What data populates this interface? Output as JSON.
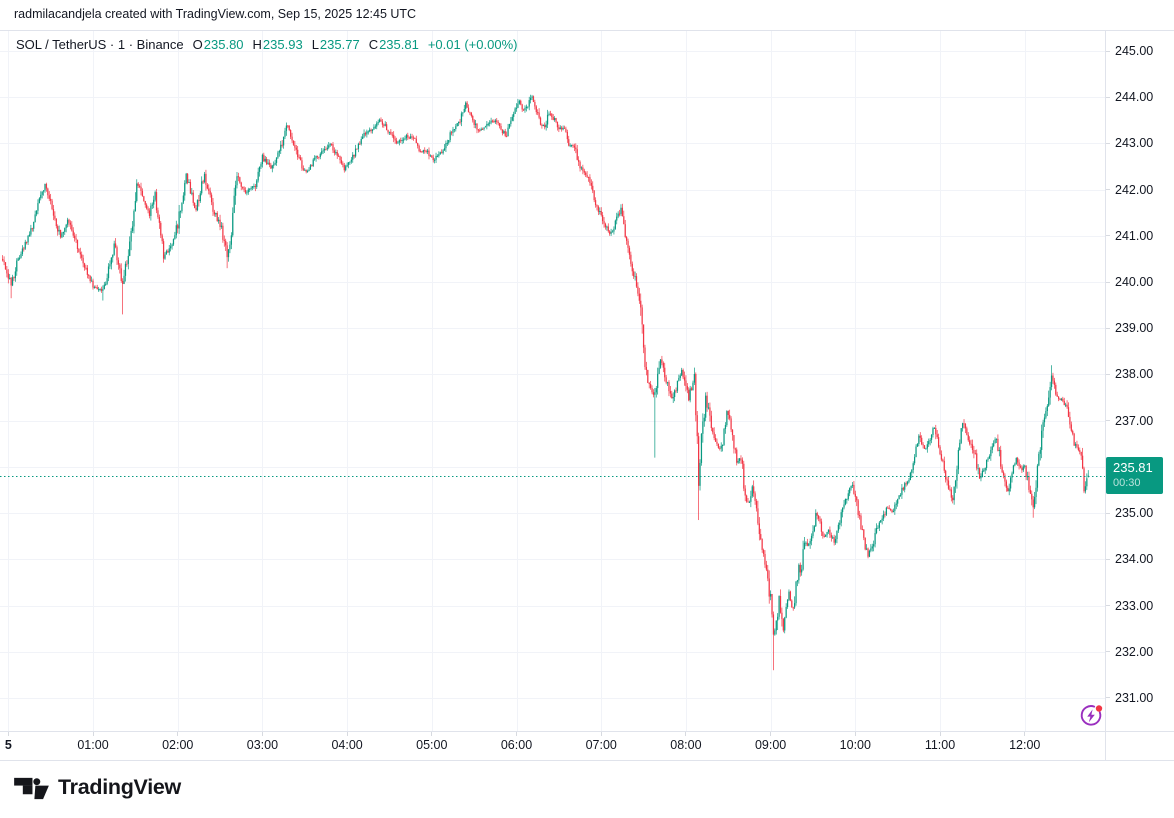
{
  "attribution": "radmilacandjela created with TradingView.com, Sep 15, 2025 12:45 UTC",
  "header": {
    "title": "SOL / TetherUS · 1 · Binance",
    "o_label": "O",
    "o": "235.80",
    "h_label": "H",
    "h": "235.93",
    "l_label": "L",
    "l": "235.77",
    "c_label": "C",
    "c": "235.81",
    "change": "+0.01 (+0.00%)"
  },
  "last_price_badge": {
    "price": "235.81",
    "countdown": "00:30",
    "color": "#089981"
  },
  "footer": {
    "brand": "TradingView"
  },
  "corner_icon": {
    "name": "flash-circle-icon",
    "circle_color": "#9a2fbf",
    "dot_color": "#f23645"
  },
  "chart_data": {
    "type": "candlestick",
    "title": "SOL/TetherUS 1-minute candles, Sep 15 2025 00:00-12:45 UTC",
    "up_color": "#089981",
    "down_color": "#F23645",
    "grid_color": "#f1f3f8",
    "text_color": "#131722",
    "last_price": 235.81,
    "last_bar": {
      "o": 235.8,
      "h": 235.93,
      "l": 235.77,
      "c": 235.81
    },
    "price_axis": {
      "min": 231,
      "max": 245,
      "step": 1,
      "labels": [
        "245.00",
        "244.00",
        "243.00",
        "242.00",
        "241.00",
        "240.00",
        "239.00",
        "238.00",
        "237.00",
        "236.00",
        "235.00",
        "234.00",
        "233.00",
        "232.00",
        "231.00"
      ]
    },
    "time_axis": {
      "ticks": [
        {
          "label": "5",
          "hour": 0,
          "bold": true
        },
        {
          "label": "01:00",
          "hour": 1
        },
        {
          "label": "02:00",
          "hour": 2
        },
        {
          "label": "03:00",
          "hour": 3
        },
        {
          "label": "04:00",
          "hour": 4
        },
        {
          "label": "05:00",
          "hour": 5
        },
        {
          "label": "06:00",
          "hour": 6
        },
        {
          "label": "07:00",
          "hour": 7
        },
        {
          "label": "08:00",
          "hour": 8
        },
        {
          "label": "09:00",
          "hour": 9
        },
        {
          "label": "10:00",
          "hour": 10
        },
        {
          "label": "11:00",
          "hour": 11
        },
        {
          "label": "12:00",
          "hour": 12
        }
      ]
    },
    "path": [
      [
        -4,
        240.5
      ],
      [
        2,
        239.95
      ],
      [
        8,
        240.6
      ],
      [
        16,
        241.1
      ],
      [
        26,
        242.15
      ],
      [
        31,
        241.6
      ],
      [
        37,
        240.95
      ],
      [
        42,
        241.35
      ],
      [
        50,
        240.7
      ],
      [
        60,
        239.9
      ],
      [
        67,
        239.8
      ],
      [
        75,
        240.8
      ],
      [
        81,
        239.95
      ],
      [
        86,
        240.8
      ],
      [
        91,
        242.2
      ],
      [
        96,
        241.8
      ],
      [
        100,
        241.45
      ],
      [
        104,
        241.9
      ],
      [
        110,
        240.55
      ],
      [
        114,
        240.7
      ],
      [
        118,
        240.95
      ],
      [
        122,
        241.6
      ],
      [
        126,
        242.3
      ],
      [
        130,
        241.9
      ],
      [
        133,
        241.55
      ],
      [
        139,
        242.35
      ],
      [
        144,
        241.65
      ],
      [
        150,
        241.25
      ],
      [
        155,
        240.55
      ],
      [
        158,
        241.1
      ],
      [
        162,
        242.3
      ],
      [
        168,
        241.95
      ],
      [
        175,
        242.1
      ],
      [
        180,
        242.7
      ],
      [
        186,
        242.45
      ],
      [
        193,
        242.9
      ],
      [
        198,
        243.4
      ],
      [
        204,
        242.8
      ],
      [
        208,
        242.5
      ],
      [
        212,
        242.4
      ],
      [
        218,
        242.7
      ],
      [
        224,
        242.85
      ],
      [
        228,
        243.0
      ],
      [
        234,
        242.7
      ],
      [
        238,
        242.45
      ],
      [
        244,
        242.7
      ],
      [
        252,
        243.2
      ],
      [
        258,
        243.3
      ],
      [
        264,
        243.5
      ],
      [
        270,
        243.25
      ],
      [
        276,
        243.0
      ],
      [
        282,
        243.15
      ],
      [
        287,
        243.1
      ],
      [
        291,
        242.85
      ],
      [
        297,
        242.8
      ],
      [
        301,
        242.65
      ],
      [
        307,
        242.8
      ],
      [
        315,
        243.3
      ],
      [
        320,
        243.5
      ],
      [
        324,
        243.85
      ],
      [
        329,
        243.5
      ],
      [
        333,
        243.3
      ],
      [
        339,
        243.4
      ],
      [
        345,
        243.5
      ],
      [
        349,
        243.35
      ],
      [
        352,
        243.15
      ],
      [
        355,
        243.4
      ],
      [
        358,
        243.6
      ],
      [
        362,
        243.95
      ],
      [
        365,
        243.7
      ],
      [
        368,
        243.85
      ],
      [
        371,
        244.0
      ],
      [
        374,
        243.75
      ],
      [
        377,
        243.45
      ],
      [
        380,
        243.35
      ],
      [
        383,
        243.65
      ],
      [
        386,
        243.55
      ],
      [
        390,
        243.35
      ],
      [
        394,
        243.3
      ],
      [
        397,
        243.0
      ],
      [
        401,
        242.9
      ],
      [
        406,
        242.45
      ],
      [
        410,
        242.3
      ],
      [
        415,
        241.8
      ],
      [
        419,
        241.5
      ],
      [
        423,
        241.2
      ],
      [
        427,
        241.05
      ],
      [
        430,
        241.3
      ],
      [
        434,
        241.55
      ],
      [
        437,
        241.0
      ],
      [
        440,
        240.55
      ],
      [
        443,
        240.15
      ],
      [
        446,
        239.85
      ],
      [
        449,
        239.0
      ],
      [
        452,
        237.95
      ],
      [
        455,
        237.7
      ],
      [
        458,
        237.55
      ],
      [
        462,
        238.35
      ],
      [
        466,
        237.9
      ],
      [
        470,
        237.45
      ],
      [
        474,
        237.8
      ],
      [
        477,
        238.1
      ],
      [
        480,
        237.7
      ],
      [
        482,
        237.45
      ],
      [
        484,
        237.75
      ],
      [
        486,
        238.05
      ],
      [
        489,
        235.7
      ],
      [
        491,
        236.6
      ],
      [
        494,
        237.5
      ],
      [
        497,
        237.1
      ],
      [
        500,
        236.55
      ],
      [
        503,
        236.4
      ],
      [
        506,
        236.5
      ],
      [
        509,
        237.2
      ],
      [
        513,
        236.7
      ],
      [
        516,
        236.05
      ],
      [
        519,
        236.2
      ],
      [
        522,
        235.35
      ],
      [
        525,
        235.2
      ],
      [
        527,
        235.55
      ],
      [
        530,
        235.0
      ],
      [
        532,
        234.55
      ],
      [
        535,
        234.1
      ],
      [
        538,
        233.6
      ],
      [
        540,
        233.1
      ],
      [
        542,
        232.3
      ],
      [
        544,
        232.6
      ],
      [
        546,
        233.2
      ],
      [
        548,
        232.7
      ],
      [
        549,
        232.45
      ],
      [
        551,
        232.9
      ],
      [
        553,
        233.3
      ],
      [
        555,
        232.9
      ],
      [
        557,
        233.1
      ],
      [
        560,
        233.9
      ],
      [
        562,
        233.7
      ],
      [
        564,
        234.45
      ],
      [
        567,
        234.3
      ],
      [
        570,
        234.6
      ],
      [
        572,
        235.0
      ],
      [
        575,
        234.75
      ],
      [
        578,
        234.5
      ],
      [
        581,
        234.65
      ],
      [
        585,
        234.4
      ],
      [
        588,
        234.75
      ],
      [
        592,
        235.2
      ],
      [
        595,
        235.45
      ],
      [
        598,
        235.6
      ],
      [
        601,
        235.2
      ],
      [
        603,
        234.9
      ],
      [
        606,
        234.4
      ],
      [
        609,
        234.05
      ],
      [
        612,
        234.3
      ],
      [
        616,
        234.7
      ],
      [
        619,
        234.9
      ],
      [
        622,
        235.1
      ],
      [
        626,
        235.0
      ],
      [
        630,
        235.3
      ],
      [
        634,
        235.55
      ],
      [
        637,
        235.7
      ],
      [
        639,
        235.9
      ],
      [
        642,
        236.3
      ],
      [
        645,
        236.65
      ],
      [
        648,
        236.45
      ],
      [
        650,
        236.4
      ],
      [
        653,
        236.6
      ],
      [
        656,
        236.85
      ],
      [
        659,
        236.5
      ],
      [
        661,
        236.2
      ],
      [
        664,
        235.8
      ],
      [
        667,
        235.45
      ],
      [
        669,
        235.3
      ],
      [
        672,
        236.1
      ],
      [
        676,
        237.0
      ],
      [
        679,
        236.7
      ],
      [
        682,
        236.5
      ],
      [
        685,
        236.2
      ],
      [
        688,
        235.75
      ],
      [
        691,
        235.95
      ],
      [
        694,
        236.2
      ],
      [
        697,
        236.45
      ],
      [
        700,
        236.6
      ],
      [
        703,
        236.1
      ],
      [
        706,
        235.7
      ],
      [
        708,
        235.45
      ],
      [
        711,
        235.8
      ],
      [
        714,
        236.2
      ],
      [
        717,
        235.95
      ],
      [
        720,
        236.0
      ],
      [
        723,
        235.6
      ],
      [
        726,
        235.15
      ],
      [
        729,
        235.9
      ],
      [
        733,
        236.9
      ],
      [
        736,
        237.3
      ],
      [
        739,
        238.0
      ],
      [
        741,
        237.7
      ],
      [
        744,
        237.5
      ],
      [
        747,
        237.4
      ],
      [
        750,
        237.3
      ],
      [
        752,
        237.0
      ],
      [
        755,
        236.55
      ],
      [
        757,
        236.4
      ],
      [
        760,
        236.3
      ],
      [
        762,
        235.5
      ],
      [
        764,
        235.7
      ],
      [
        765,
        235.81
      ]
    ],
    "spikes": [
      {
        "t": 2,
        "low": 239.65
      },
      {
        "t": 67,
        "low": 239.6
      },
      {
        "t": 81,
        "low": 239.3
      },
      {
        "t": 155,
        "low": 240.3
      },
      {
        "t": 371,
        "high": 244.05
      },
      {
        "t": 458,
        "low": 236.2
      },
      {
        "t": 489,
        "low": 234.85
      },
      {
        "t": 542,
        "low": 231.6
      },
      {
        "t": 726,
        "low": 234.9
      },
      {
        "t": 739,
        "high": 238.2
      }
    ]
  }
}
